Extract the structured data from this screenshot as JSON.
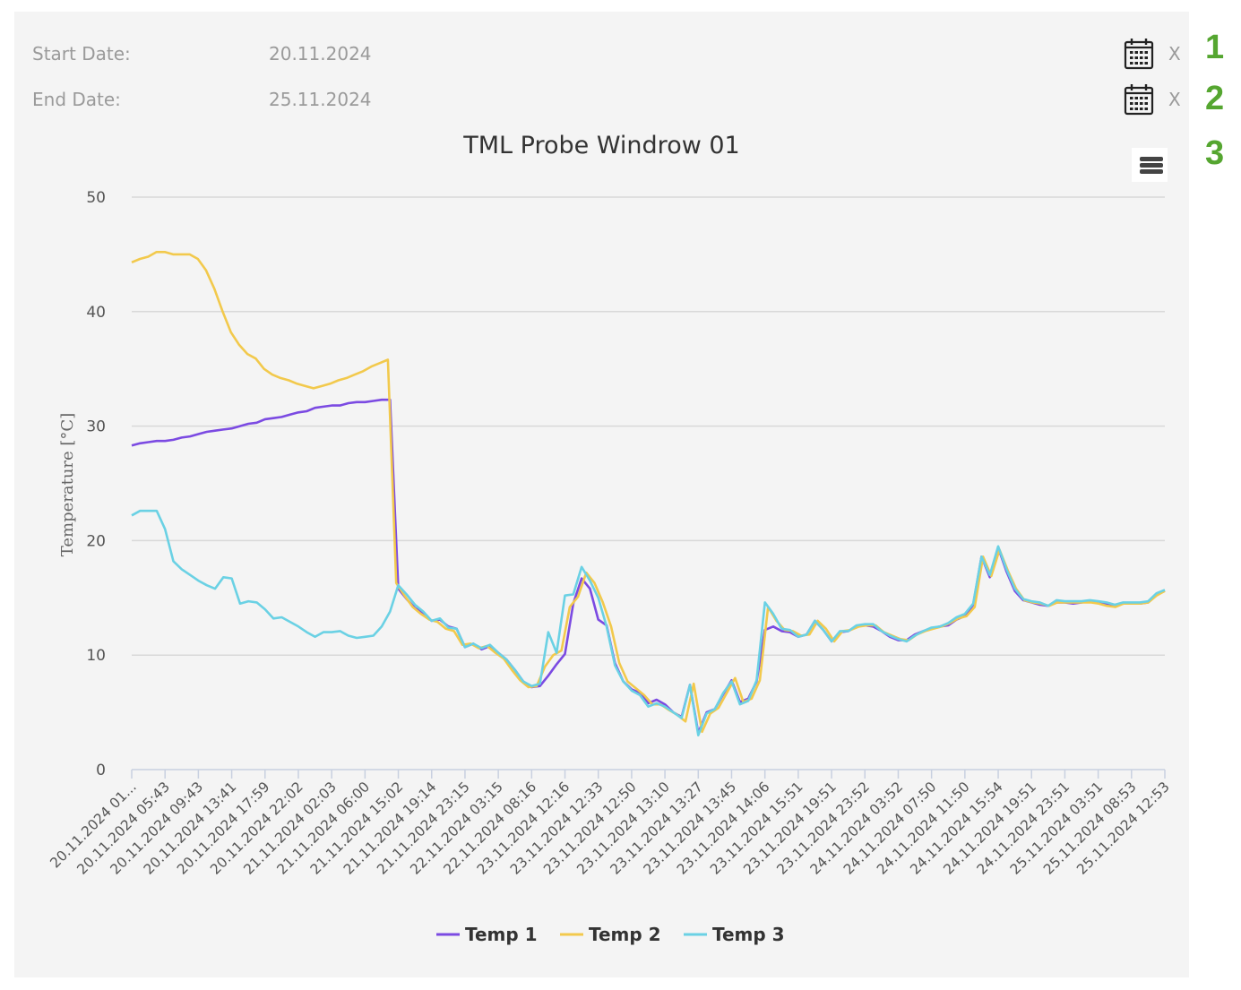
{
  "filters": {
    "start": {
      "label": "Start Date:",
      "value": "20.11.2024",
      "clear": "X",
      "badge": "1"
    },
    "end": {
      "label": "End Date:",
      "value": "25.11.2024",
      "clear": "X",
      "badge": "2"
    },
    "menu_badge": "3"
  },
  "icons": {
    "calendar": "calendar-icon",
    "menu": "hamburger-menu-icon"
  },
  "chart_data": {
    "type": "line",
    "title": "TML Probe Windrow 01",
    "xlabel": "",
    "ylabel": "Temperature [°C]",
    "ylim": [
      0,
      50
    ],
    "yticks": [
      0,
      10,
      20,
      30,
      40,
      50
    ],
    "grid": true,
    "legend_position": "bottom-center",
    "xtick_labels": [
      "20.11.2024 01...",
      "20.11.2024 05:43",
      "20.11.2024 09:43",
      "20.11.2024 13:41",
      "20.11.2024 17:59",
      "20.11.2024 22:02",
      "21.11.2024 02:03",
      "21.11.2024 06:00",
      "21.11.2024 15:02",
      "21.11.2024 19:14",
      "21.11.2024 23:15",
      "22.11.2024 03:15",
      "22.11.2024 08:16",
      "23.11.2024 12:16",
      "23.11.2024 12:33",
      "23.11.2024 12:50",
      "23.11.2024 13:10",
      "23.11.2024 13:27",
      "23.11.2024 13:45",
      "23.11.2024 14:06",
      "23.11.2024 15:51",
      "23.11.2024 19:51",
      "23.11.2024 23:52",
      "24.11.2024 03:52",
      "24.11.2024 07:50",
      "24.11.2024 11:50",
      "24.11.2024 15:54",
      "24.11.2024 19:51",
      "24.11.2024 23:51",
      "25.11.2024 03:51",
      "25.11.2024 08:53",
      "25.11.2024 12:53"
    ],
    "series": [
      {
        "name": "Temp 1",
        "color": "#7b4ae2",
        "values": [
          28.3,
          28.5,
          28.6,
          28.7,
          28.7,
          28.8,
          29.0,
          29.1,
          29.3,
          29.5,
          29.6,
          29.7,
          29.8,
          30.0,
          30.2,
          30.3,
          30.6,
          30.7,
          30.8,
          31.0,
          31.2,
          31.3,
          31.6,
          31.7,
          31.8,
          31.8,
          32.0,
          32.1,
          32.1,
          32.2,
          32.3,
          32.3,
          15.8,
          14.9,
          14.1,
          13.7,
          13.0,
          13.1,
          12.5,
          12.3,
          10.7,
          11.0,
          10.5,
          10.8,
          10.2,
          9.6,
          8.7,
          7.7,
          7.2,
          7.3,
          8.2,
          9.2,
          10.1,
          14.5,
          16.7,
          15.8,
          13.1,
          12.6,
          9.3,
          7.7,
          7.0,
          6.7,
          5.8,
          6.1,
          5.7,
          5.0,
          4.6,
          7.4,
          3.2,
          5.0,
          5.3,
          6.6,
          7.8,
          5.9,
          6.2,
          7.7,
          12.2,
          12.5,
          12.1,
          12.0,
          11.6,
          11.8,
          13.0,
          12.2,
          11.2,
          12.0,
          12.1,
          12.5,
          12.6,
          12.5,
          12.1,
          11.6,
          11.3,
          11.3,
          11.8,
          12.1,
          12.3,
          12.5,
          12.6,
          13.1,
          13.4,
          14.4,
          18.6,
          16.8,
          19.4,
          17.3,
          15.6,
          14.8,
          14.6,
          14.4,
          14.3,
          14.6,
          14.6,
          14.5,
          14.6,
          14.7,
          14.6,
          14.5,
          14.3,
          14.5,
          14.5,
          14.5,
          14.6,
          15.3,
          15.6
        ]
      },
      {
        "name": "Temp 2",
        "color": "#f2c94c",
        "values": [
          44.3,
          44.6,
          44.8,
          45.2,
          45.2,
          45.0,
          45.0,
          45.0,
          44.6,
          43.6,
          42.0,
          40.0,
          38.2,
          37.1,
          36.3,
          35.9,
          35.0,
          34.5,
          34.2,
          34.0,
          33.7,
          33.5,
          33.3,
          33.5,
          33.7,
          34.0,
          34.2,
          34.5,
          34.8,
          35.2,
          35.5,
          35.8,
          16.3,
          15.2,
          14.2,
          13.6,
          13.1,
          12.9,
          12.3,
          12.1,
          10.9,
          11.0,
          10.6,
          10.8,
          10.2,
          9.7,
          8.7,
          7.8,
          7.2,
          7.3,
          9.0,
          10.0,
          10.4,
          14.2,
          15.1,
          17.2,
          16.3,
          14.6,
          12.5,
          9.3,
          7.7,
          7.1,
          6.5,
          5.7,
          5.7,
          5.2,
          4.8,
          4.2,
          7.5,
          3.3,
          4.9,
          5.4,
          6.7,
          8.0,
          5.9,
          6.2,
          7.8,
          14.2,
          13.0,
          12.2,
          12.1,
          11.7,
          11.8,
          13.0,
          12.3,
          11.2,
          12.1,
          12.2,
          12.5,
          12.6,
          12.6,
          12.0,
          11.7,
          11.4,
          11.3,
          11.8,
          12.1,
          12.3,
          12.5,
          12.8,
          13.2,
          13.4,
          14.2,
          18.6,
          16.9,
          19.2,
          17.4,
          15.8,
          14.8,
          14.6,
          14.5,
          14.3,
          14.6,
          14.6,
          14.6,
          14.6,
          14.6,
          14.5,
          14.3,
          14.2,
          14.5,
          14.5,
          14.5,
          14.6,
          15.2,
          15.6
        ]
      },
      {
        "name": "Temp 3",
        "color": "#6ad1e4",
        "values": [
          22.2,
          22.6,
          22.6,
          22.6,
          21.0,
          18.2,
          17.5,
          17.0,
          16.5,
          16.1,
          15.8,
          16.8,
          16.7,
          14.5,
          14.7,
          14.6,
          14.0,
          13.2,
          13.3,
          12.9,
          12.5,
          12.0,
          11.6,
          12.0,
          12.0,
          12.1,
          11.7,
          11.5,
          11.6,
          11.7,
          12.5,
          13.8,
          16.1,
          15.3,
          14.4,
          13.8,
          13.0,
          13.2,
          12.4,
          12.3,
          10.7,
          11.0,
          10.6,
          10.9,
          10.2,
          9.6,
          8.7,
          7.7,
          7.3,
          7.5,
          12.0,
          10.2,
          15.2,
          15.3,
          17.7,
          16.5,
          15.0,
          12.5,
          9.1,
          7.7,
          6.9,
          6.5,
          5.5,
          5.8,
          5.5,
          5.0,
          4.5,
          7.4,
          3.0,
          4.9,
          5.3,
          6.7,
          7.7,
          5.7,
          6.0,
          7.8,
          14.6,
          13.6,
          12.3,
          12.2,
          11.6,
          11.8,
          13.0,
          12.2,
          11.2,
          12.1,
          12.1,
          12.6,
          12.7,
          12.7,
          12.1,
          11.7,
          11.4,
          11.2,
          11.7,
          12.1,
          12.4,
          12.5,
          12.8,
          13.3,
          13.6,
          14.5,
          18.6,
          17.0,
          19.5,
          17.5,
          15.8,
          14.9,
          14.7,
          14.6,
          14.3,
          14.8,
          14.7,
          14.7,
          14.7,
          14.8,
          14.7,
          14.6,
          14.4,
          14.6,
          14.6,
          14.6,
          14.7,
          15.4,
          15.7
        ]
      }
    ]
  }
}
